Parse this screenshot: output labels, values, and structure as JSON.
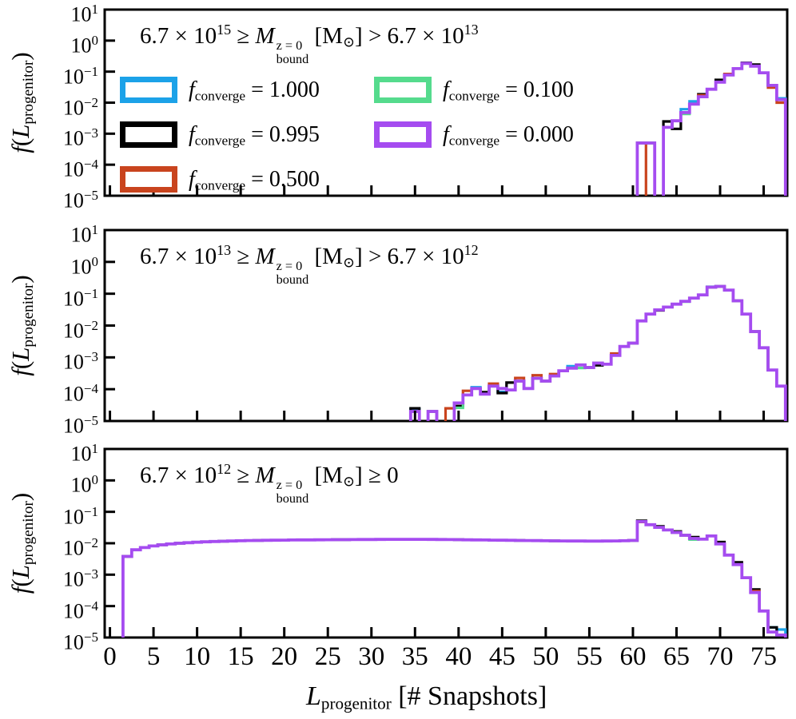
{
  "colors": {
    "axis": "#000000",
    "background": "#ffffff",
    "cyan": "#1CA2E8",
    "black": "#000000",
    "red": "#C9441E",
    "green": "#55DB8D",
    "purple": "#A54CF0"
  },
  "axes": {
    "ylabel_tokens": [
      {
        "t": "f",
        "s": "i"
      },
      {
        "t": "("
      },
      {
        "t": "L",
        "s": "i"
      },
      {
        "t": "progenitor",
        "s": "sub"
      },
      {
        "t": ")"
      }
    ],
    "xlabel_tokens": [
      {
        "t": "L",
        "s": "i"
      },
      {
        "t": "progenitor",
        "s": "sub"
      },
      {
        "t": " [# Snapshots]"
      }
    ],
    "y_tick_exponents": [
      "1",
      "0",
      "−1",
      "−2",
      "−3",
      "−4",
      "−5"
    ],
    "x_ticks": [
      0,
      5,
      10,
      15,
      20,
      25,
      30,
      35,
      40,
      45,
      50,
      55,
      60,
      65,
      70,
      75
    ]
  },
  "legend": {
    "entries": [
      {
        "name": "f_converge = 1.000",
        "prefix": "f",
        "sub": "converge",
        "eq": " = 1.000",
        "color": "#1CA2E8"
      },
      {
        "name": "f_converge = 0.995",
        "prefix": "f",
        "sub": "converge",
        "eq": " = 0.995",
        "color": "#000000"
      },
      {
        "name": "f_converge = 0.500",
        "prefix": "f",
        "sub": "converge",
        "eq": " = 0.500",
        "color": "#C9441E"
      },
      {
        "name": "f_converge = 0.100",
        "prefix": "f",
        "sub": "converge",
        "eq": " = 0.100",
        "color": "#55DB8D"
      },
      {
        "name": "f_converge = 0.000",
        "prefix": "f",
        "sub": "converge",
        "eq": " = 0.000",
        "color": "#A54CF0"
      }
    ]
  },
  "chart_data": [
    {
      "type": "histogram-step",
      "name": "panel-top-high-mass",
      "title_text": "6.7×10^15 ≥ M_bound^z=0 [M⊙] > 6.7×10^13",
      "title_tokens": [
        {
          "t": "6.7 × 10"
        },
        {
          "t": "15",
          "s": "sup"
        },
        {
          "t": " ≥ "
        },
        {
          "t": "M",
          "s": "i"
        },
        {
          "sup": "z = 0",
          "sub": "bound",
          "s": "ss"
        },
        {
          "t": " [M"
        },
        {
          "t": "⊙",
          "s": "sub"
        },
        {
          "t": "] > 6.7 × 10"
        },
        {
          "t": "13",
          "s": "sup"
        }
      ],
      "xlim": [
        -0.6,
        77.7
      ],
      "ylim": [
        1e-05,
        10
      ],
      "yscale": "log",
      "bin_width": 1,
      "values_by_center": {
        "61": 0.0005,
        "62": 0.0005,
        "64": 0.0016,
        "65": 0.0026,
        "66": 0.0048,
        "67": 0.009,
        "68": 0.0155,
        "69": 0.027,
        "70": 0.046,
        "71": 0.078,
        "72": 0.125,
        "73": 0.185,
        "74": 0.15,
        "75": 0.092,
        "76": 0.036,
        "77": 0.0125
      },
      "series": [
        {
          "name": "f_converge = 1.000",
          "color": "#1CA2E8",
          "deviations": {
            "66": 1.28,
            "67": 1.22,
            "77": 1.1
          }
        },
        {
          "name": "f_converge = 0.995",
          "color": "#000000",
          "deviations": {
            "64": 1.55,
            "65": 0.55,
            "68": 1.2,
            "70": 1.18,
            "73": 1.04,
            "74": 1.12
          }
        },
        {
          "name": "f_converge = 0.500",
          "color": "#C9441E",
          "deviations": {
            "62": 0,
            "68": 1.12,
            "71": 1.08,
            "76": 0.85,
            "77": 0.8
          }
        },
        {
          "name": "f_converge = 0.100",
          "color": "#55DB8D",
          "deviations": {
            "66": 0.9
          }
        },
        {
          "name": "f_converge = 0.000",
          "color": "#A54CF0",
          "deviations": {}
        }
      ]
    },
    {
      "type": "histogram-step",
      "name": "panel-middle-intermediate-mass",
      "title_text": "6.7×10^13 ≥ M_bound^z=0 [M⊙] > 6.7×10^12",
      "title_tokens": [
        {
          "t": "6.7 × 10"
        },
        {
          "t": "13",
          "s": "sup"
        },
        {
          "t": " ≥ "
        },
        {
          "t": "M",
          "s": "i"
        },
        {
          "sup": "z = 0",
          "sub": "bound",
          "s": "ss"
        },
        {
          "t": " [M"
        },
        {
          "t": "⊙",
          "s": "sub"
        },
        {
          "t": "] > 6.7 × 10"
        },
        {
          "t": "12",
          "s": "sup"
        }
      ],
      "xlim": [
        -0.6,
        77.7
      ],
      "ylim": [
        1e-05,
        10
      ],
      "yscale": "log",
      "bin_width": 1,
      "values_by_center": {
        "35": 2e-05,
        "37": 2e-05,
        "39": 2.5e-05,
        "40": 3.7e-05,
        "41": 6.6e-05,
        "42": 0.000105,
        "43": 7e-05,
        "44": 0.000125,
        "45": 0.000105,
        "46": 9.5e-05,
        "47": 0.00018,
        "48": 0.000105,
        "49": 0.00022,
        "50": 0.00018,
        "51": 0.00026,
        "52": 0.00038,
        "53": 0.00046,
        "54": 0.00058,
        "55": 0.00048,
        "56": 0.00066,
        "57": 0.00061,
        "58": 0.00115,
        "59": 0.0022,
        "60": 0.0028,
        "61": 0.014,
        "62": 0.023,
        "63": 0.031,
        "64": 0.038,
        "65": 0.047,
        "66": 0.058,
        "67": 0.073,
        "68": 0.092,
        "69": 0.16,
        "70": 0.17,
        "71": 0.13,
        "72": 0.06,
        "73": 0.023,
        "74": 0.0065,
        "75": 0.002,
        "76": 0.0004,
        "77": 0.000125
      },
      "series": [
        {
          "name": "f_converge = 1.000",
          "color": "#1CA2E8",
          "deviations": {
            "35": 1.2,
            "39": 0,
            "42": 1.1,
            "45": 0.78,
            "53": 1.15,
            "69": 1.03
          }
        },
        {
          "name": "f_converge = 0.995",
          "color": "#000000",
          "deviations": {
            "35": 1.25,
            "39": 0,
            "40": 0.8,
            "43": 1.15,
            "45": 0.72,
            "46": 1.7,
            "56": 0.85,
            "63": 0.97
          }
        },
        {
          "name": "f_converge = 0.500",
          "color": "#C9441E",
          "deviations": {
            "41": 1.35,
            "44": 1.2,
            "47": 1.25,
            "49": 1.25,
            "51": 1.15,
            "58": 1.15
          }
        },
        {
          "name": "f_converge = 0.100",
          "color": "#55DB8D",
          "deviations": {
            "39": 0,
            "40": 0.7,
            "54": 0.8,
            "66": 0.97
          }
        },
        {
          "name": "f_converge = 0.000",
          "color": "#A54CF0",
          "deviations": {
            "39": 0
          }
        }
      ]
    },
    {
      "type": "histogram-step",
      "name": "panel-bottom-low-mass",
      "title_text": "6.7×10^12 ≥ M_bound^z=0 [M⊙] ≥ 0",
      "title_tokens": [
        {
          "t": "6.7 × 10"
        },
        {
          "t": "12",
          "s": "sup"
        },
        {
          "t": " ≥ "
        },
        {
          "t": "M",
          "s": "i"
        },
        {
          "sup": "z = 0",
          "sub": "bound",
          "s": "ss"
        },
        {
          "t": " [M"
        },
        {
          "t": "⊙",
          "s": "sub"
        },
        {
          "t": "] ≥ 0"
        }
      ],
      "xlim": [
        -0.6,
        77.7
      ],
      "ylim": [
        1e-05,
        10
      ],
      "yscale": "log",
      "bin_width": 1,
      "values_by_center": {
        "2": 0.0038,
        "3": 0.0062,
        "4": 0.0073,
        "5": 0.0082,
        "6": 0.0089,
        "7": 0.0095,
        "8": 0.01,
        "9": 0.0104,
        "10": 0.0108,
        "11": 0.0111,
        "12": 0.0114,
        "13": 0.0116,
        "14": 0.0118,
        "15": 0.012,
        "16": 0.0122,
        "17": 0.0123,
        "18": 0.0124,
        "19": 0.0125,
        "20": 0.0126,
        "21": 0.0127,
        "22": 0.01275,
        "23": 0.0128,
        "24": 0.0129,
        "25": 0.01295,
        "26": 0.013,
        "27": 0.01305,
        "28": 0.0131,
        "29": 0.01315,
        "30": 0.0132,
        "31": 0.01325,
        "32": 0.0133,
        "33": 0.0133,
        "34": 0.01335,
        "35": 0.01335,
        "36": 0.0133,
        "37": 0.01325,
        "38": 0.0132,
        "39": 0.0131,
        "40": 0.013,
        "41": 0.0129,
        "42": 0.0128,
        "43": 0.0127,
        "44": 0.0126,
        "45": 0.0125,
        "46": 0.0124,
        "47": 0.0123,
        "48": 0.0122,
        "49": 0.0121,
        "50": 0.012,
        "51": 0.0119,
        "52": 0.01185,
        "53": 0.0118,
        "54": 0.01175,
        "55": 0.0117,
        "56": 0.0117,
        "57": 0.01175,
        "58": 0.01185,
        "59": 0.012,
        "60": 0.0123,
        "61": 0.049,
        "62": 0.039,
        "63": 0.032,
        "64": 0.0265,
        "65": 0.022,
        "66": 0.018,
        "67": 0.0142,
        "68": 0.0135,
        "69": 0.017,
        "70": 0.0095,
        "71": 0.0042,
        "72": 0.0021,
        "73": 0.0008,
        "74": 0.00027,
        "75": 7e-05,
        "76": 1.5e-05,
        "77": 1.2e-05
      },
      "series": [
        {
          "name": "f_converge = 1.000",
          "color": "#1CA2E8",
          "deviations": {
            "76": 1.4,
            "77": 1.5
          }
        },
        {
          "name": "f_converge = 0.995",
          "color": "#000000",
          "deviations": {
            "61": 1.06,
            "63": 1.08,
            "65": 1.08,
            "67": 1.1,
            "70": 1.15,
            "72": 1.18,
            "74": 1.25,
            "76": 1.4
          }
        },
        {
          "name": "f_converge = 0.500",
          "color": "#C9441E",
          "deviations": {
            "61": 0.97,
            "74": 1.12
          }
        },
        {
          "name": "f_converge = 0.100",
          "color": "#55DB8D",
          "deviations": {
            "67": 0.92
          }
        },
        {
          "name": "f_converge = 0.000",
          "color": "#A54CF0",
          "deviations": {}
        }
      ]
    }
  ]
}
